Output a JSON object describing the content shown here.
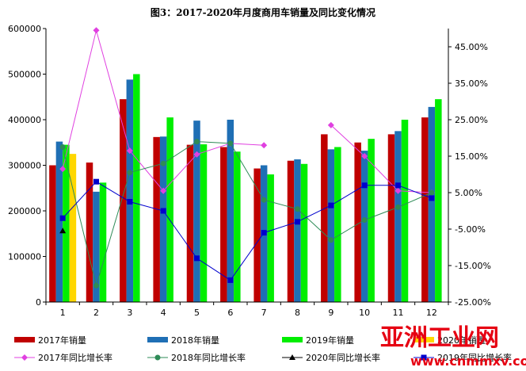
{
  "chart_data": {
    "type": "bar",
    "title": "图3：2017-2020年月度商用车销量及同比变化情况",
    "categories": [
      "1",
      "2",
      "3",
      "4",
      "5",
      "6",
      "7",
      "8",
      "9",
      "10",
      "11",
      "12"
    ],
    "y_left": {
      "ylim": [
        0,
        600000
      ],
      "ticks": [
        "0",
        "100000",
        "200000",
        "300000",
        "400000",
        "500000",
        "600000"
      ]
    },
    "y_right": {
      "ylim": [
        -25,
        50
      ],
      "ticks": [
        "-25.00%",
        "-15.00%",
        "-5.00%",
        "5.00%",
        "15.00%",
        "25.00%",
        "35.00%",
        "45.00%"
      ]
    },
    "bar_series": [
      {
        "name": "2017年销量",
        "color": "#c00000",
        "values": [
          300000,
          306000,
          445000,
          362000,
          345000,
          340000,
          293000,
          310000,
          368000,
          350000,
          368000,
          405000
        ]
      },
      {
        "name": "2018年销量",
        "color": "#1f6fb5",
        "values": [
          352000,
          242000,
          488000,
          363000,
          398000,
          400000,
          300000,
          313000,
          335000,
          332000,
          375000,
          428000
        ]
      },
      {
        "name": "2019年销量",
        "color": "#00ee00",
        "values": [
          345000,
          262000,
          500000,
          405000,
          346000,
          330000,
          280000,
          303000,
          340000,
          358000,
          400000,
          445000
        ]
      },
      {
        "name": "2020年销量",
        "color": "#ffd700",
        "values": [
          325000,
          null,
          null,
          null,
          null,
          null,
          null,
          null,
          null,
          null,
          null,
          null
        ]
      }
    ],
    "line_series": [
      {
        "name": "2017年同比增长率",
        "color": "#e040e0",
        "marker": "diamond",
        "values": [
          11.5,
          49.5,
          16.5,
          5.5,
          15.5,
          18.5,
          18.0,
          null,
          23.5,
          15.0,
          5.5,
          5.0
        ]
      },
      {
        "name": "2018年同比增长率",
        "color": "#2e8b57",
        "marker": "circle",
        "values": [
          17.5,
          -20.5,
          10.5,
          13.0,
          19.0,
          18.5,
          3.0,
          0.5,
          -8.0,
          -2.5,
          1.0,
          5.0
        ]
      },
      {
        "name": "2020年同比增长率",
        "color": "#000000",
        "marker": "triangle",
        "values": [
          -5.5,
          null,
          null,
          null,
          null,
          null,
          null,
          null,
          null,
          null,
          null,
          null
        ]
      },
      {
        "name": "2019年同比增长率",
        "color": "#0000cc",
        "marker": "square",
        "values": [
          -2.0,
          8.0,
          2.5,
          0.0,
          -13.0,
          -19.0,
          -6.0,
          -3.0,
          1.5,
          7.0,
          7.0,
          3.5
        ]
      }
    ],
    "legend_placement": "bottom"
  },
  "watermark": {
    "logo_text": "亚洲工业网",
    "url_text": "www.cnmmxv.com"
  }
}
